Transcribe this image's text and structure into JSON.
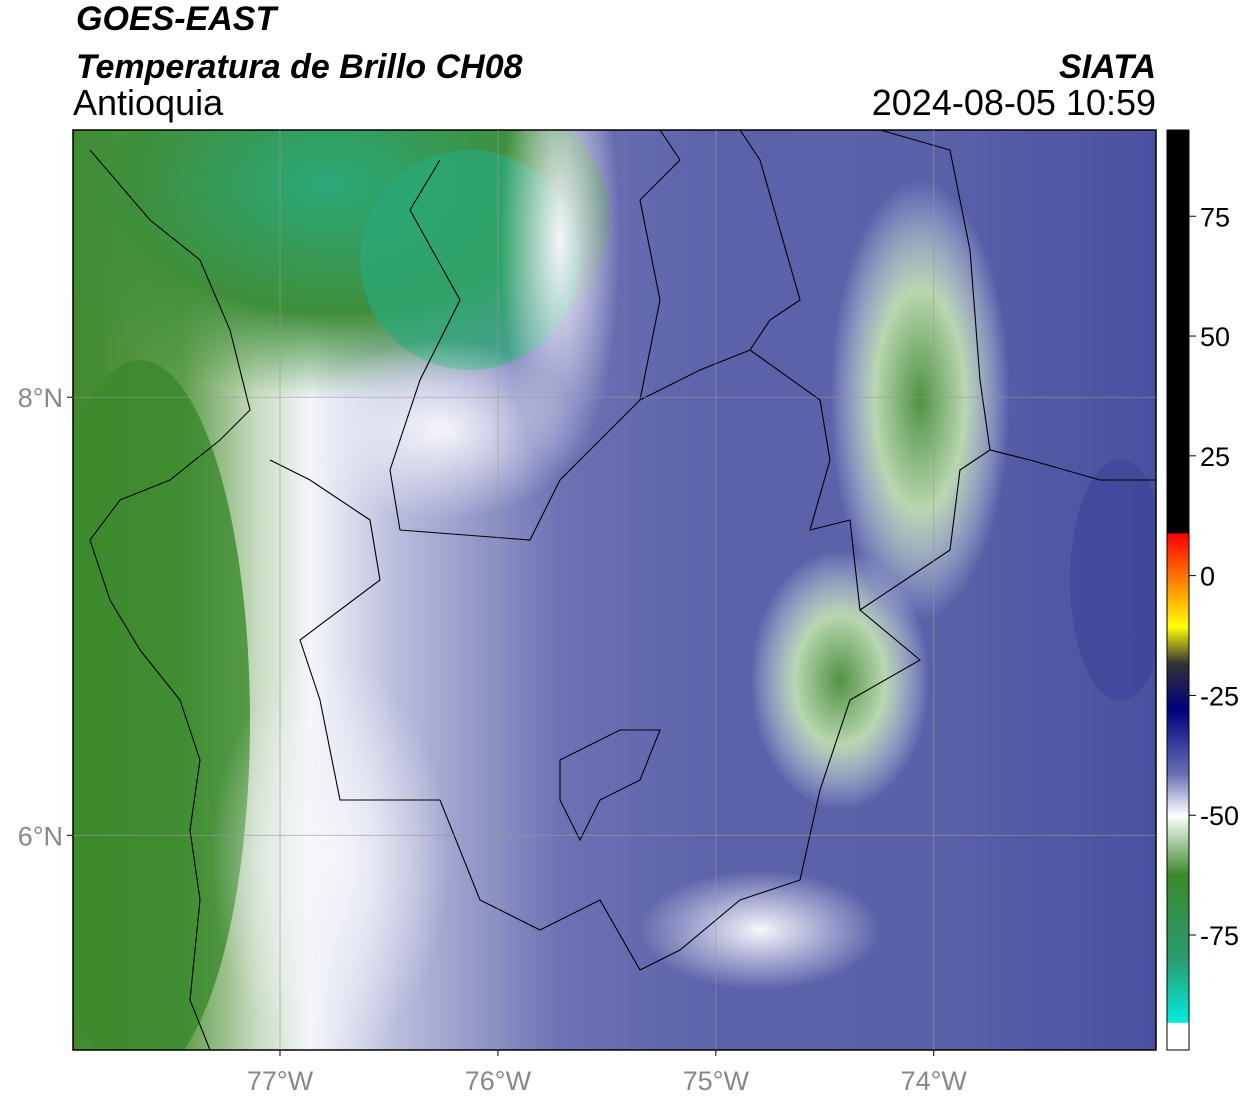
{
  "header": {
    "satellite": "GOES-EAST",
    "product": "Temperatura de Brillo CH08",
    "region": "Antioquia",
    "institution": "SIATA",
    "datetime": "2024-08-05 10:59"
  },
  "map": {
    "xlim": [
      -77.95,
      -72.98
    ],
    "ylim": [
      5.02,
      9.22
    ],
    "xticks": [
      {
        "value": -77,
        "label": "77°W"
      },
      {
        "value": -76,
        "label": "76°W"
      },
      {
        "value": -75,
        "label": "75°W"
      },
      {
        "value": -74,
        "label": "74°W"
      }
    ],
    "yticks": [
      {
        "value": 8,
        "label": "8°N"
      },
      {
        "value": 6,
        "label": "6°N"
      }
    ]
  },
  "colorbar": {
    "ylim": [
      -99,
      93
    ],
    "yticks": [
      75,
      50,
      25,
      0,
      -25,
      -50,
      -75
    ]
  }
}
